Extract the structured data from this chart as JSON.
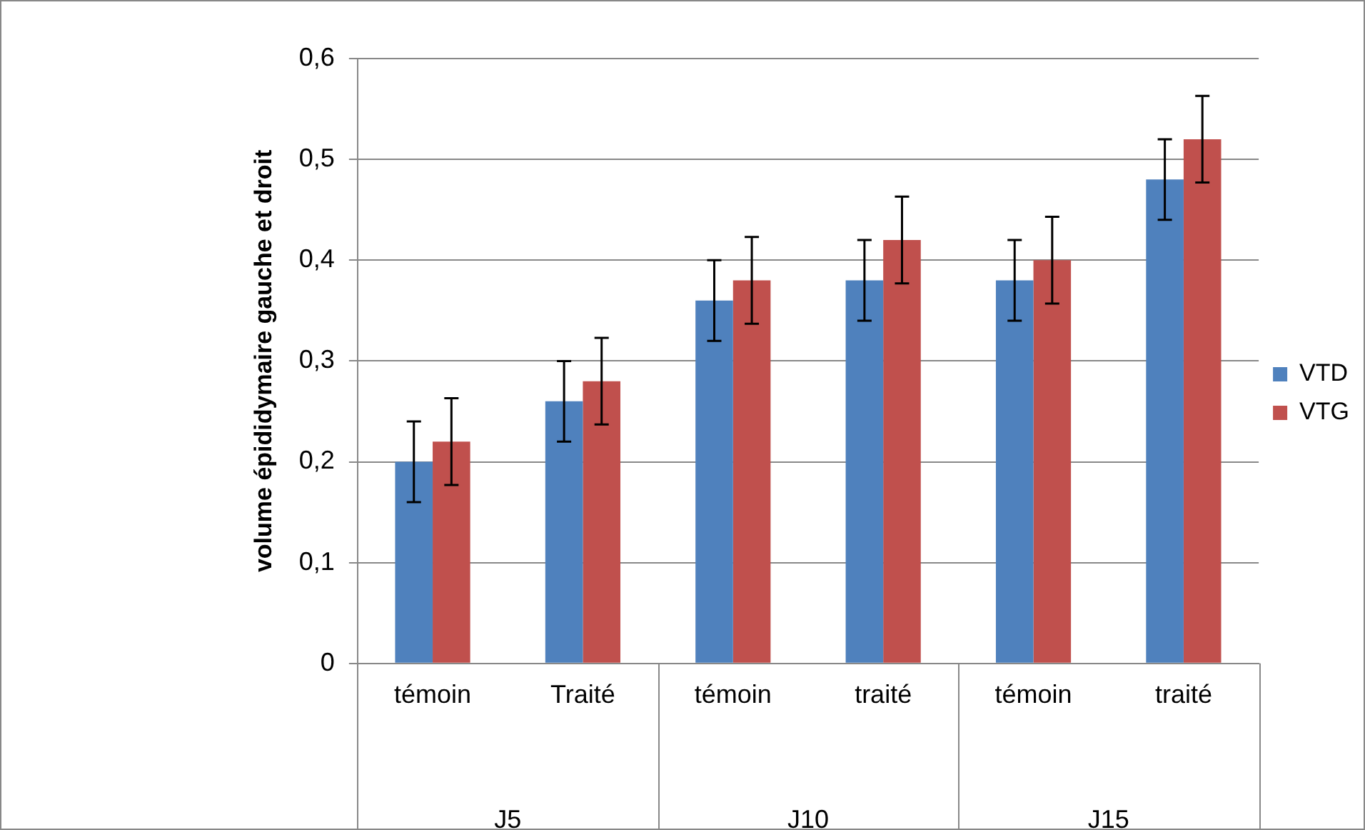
{
  "chart_data": {
    "type": "bar",
    "ylabel": "volume épididymaire gauche et droit",
    "categories": [
      "témoin",
      "Traité",
      "témoin",
      "traité",
      "témoin",
      "traité"
    ],
    "series": [
      {
        "name": "VTD",
        "color": "#4f81bd",
        "values": [
          0.2,
          0.26,
          0.36,
          0.38,
          0.38,
          0.48
        ],
        "errors": [
          0.04,
          0.04,
          0.04,
          0.04,
          0.04,
          0.04
        ]
      },
      {
        "name": "VTG",
        "color": "#c0504d",
        "values": [
          0.22,
          0.28,
          0.38,
          0.42,
          0.4,
          0.52
        ],
        "errors": [
          0.043,
          0.043,
          0.043,
          0.043,
          0.043,
          0.043
        ]
      }
    ],
    "ylim": [
      0,
      0.6
    ],
    "yticks": [
      0,
      {
        "value": 0.1,
        "label": "0,1"
      },
      {
        "value": 0.2,
        "label": "0,2"
      },
      {
        "value": 0.3,
        "label": "0,3"
      },
      {
        "value": 0.4,
        "label": "0,4"
      },
      {
        "value": 0.5,
        "label": "0,5"
      },
      {
        "value": 0.6,
        "label": "0,6"
      }
    ],
    "grid": "y",
    "legend": "right",
    "annotations": [
      "J5",
      "J10",
      "J15"
    ]
  }
}
